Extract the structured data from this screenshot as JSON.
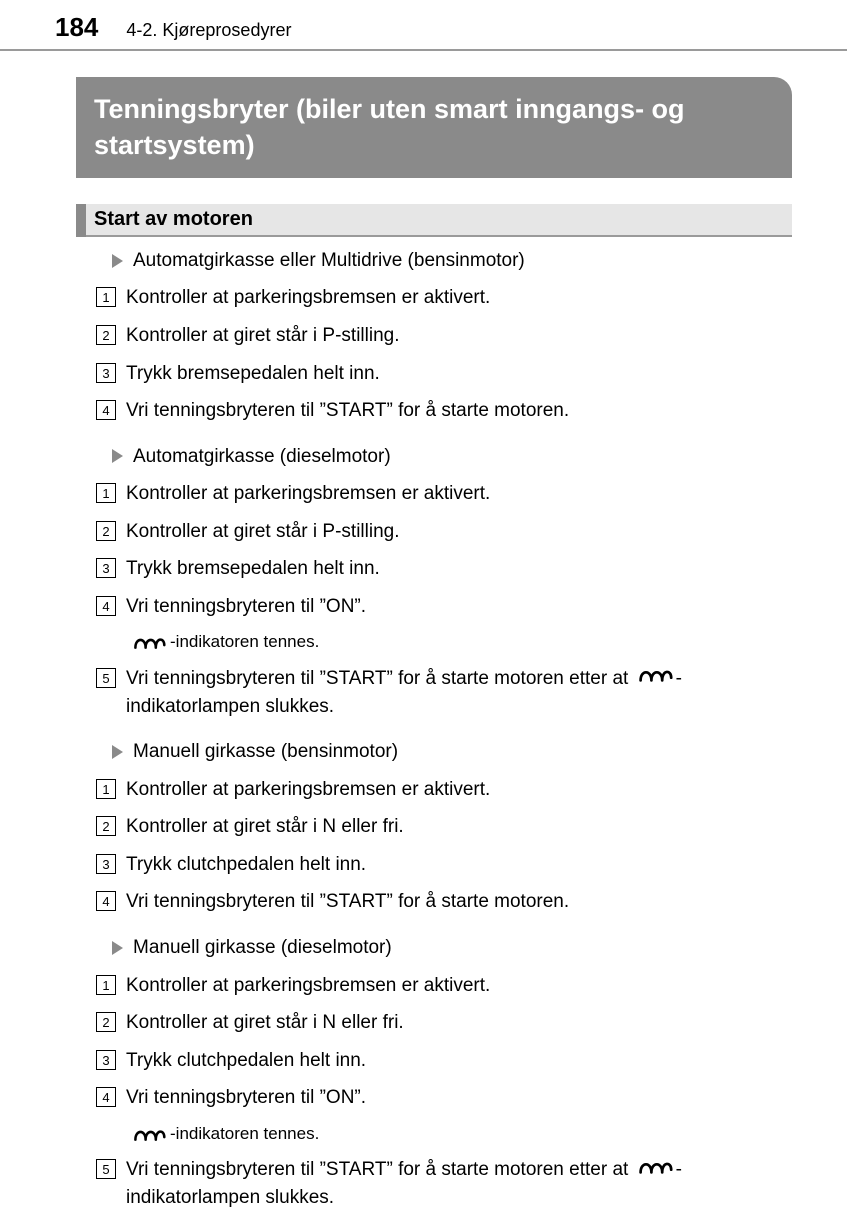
{
  "header": {
    "page_number": "184",
    "breadcrumb": "4-2. Kjøreprosedyrer"
  },
  "title": "Tenningsbryter (biler uten smart inngangs- og startsystem)",
  "section_heading": "Start av motoren",
  "groups": [
    {
      "heading": "Automatgirkasse eller Multidrive (bensinmotor)",
      "steps": [
        {
          "n": "1",
          "text": "Kontroller at parkeringsbremsen er aktivert."
        },
        {
          "n": "2",
          "text": "Kontroller at giret står i P-stilling."
        },
        {
          "n": "3",
          "text": "Trykk bremsepedalen helt inn."
        },
        {
          "n": "4",
          "text": "Vri tenningsbryteren til ”START” for å starte motoren."
        }
      ]
    },
    {
      "heading": "Automatgirkasse (dieselmotor)",
      "steps": [
        {
          "n": "1",
          "text": "Kontroller at parkeringsbremsen er aktivert."
        },
        {
          "n": "2",
          "text": "Kontroller at giret står i P-stilling."
        },
        {
          "n": "3",
          "text": "Trykk bremsepedalen helt inn."
        },
        {
          "n": "4",
          "text": "Vri tenningsbryteren til ”ON”.",
          "subline_after": "-indikatoren tennes.",
          "subline_has_icon": true
        },
        {
          "n": "5",
          "pre": "Vri tenningsbryteren til ”START” for å starte motoren etter at ",
          "post": "- indikatorlampen slukkes.",
          "has_inline_icon": true
        }
      ]
    },
    {
      "heading": "Manuell girkasse (bensinmotor)",
      "steps": [
        {
          "n": "1",
          "text": "Kontroller at parkeringsbremsen er aktivert."
        },
        {
          "n": "2",
          "text": "Kontroller at giret står i N eller fri."
        },
        {
          "n": "3",
          "text": "Trykk clutchpedalen helt inn."
        },
        {
          "n": "4",
          "text": "Vri tenningsbryteren til ”START” for å starte motoren."
        }
      ]
    },
    {
      "heading": "Manuell girkasse (dieselmotor)",
      "steps": [
        {
          "n": "1",
          "text": "Kontroller at parkeringsbremsen er aktivert."
        },
        {
          "n": "2",
          "text": "Kontroller at giret står i N eller fri."
        },
        {
          "n": "3",
          "text": "Trykk clutchpedalen helt inn."
        },
        {
          "n": "4",
          "text": "Vri tenningsbryteren til ”ON”.",
          "subline_after": "-indikatoren tennes.",
          "subline_has_icon": true
        },
        {
          "n": "5",
          "pre": "Vri tenningsbryteren til ”START” for å starte motoren etter at ",
          "post": "- indikatorlampen slukkes.",
          "has_inline_icon": true
        }
      ]
    }
  ],
  "colors": {
    "title_bg": "#8a8a8a",
    "title_fg": "#ffffff",
    "section_bg": "#e6e6e6",
    "rule": "#9a9a9a"
  }
}
